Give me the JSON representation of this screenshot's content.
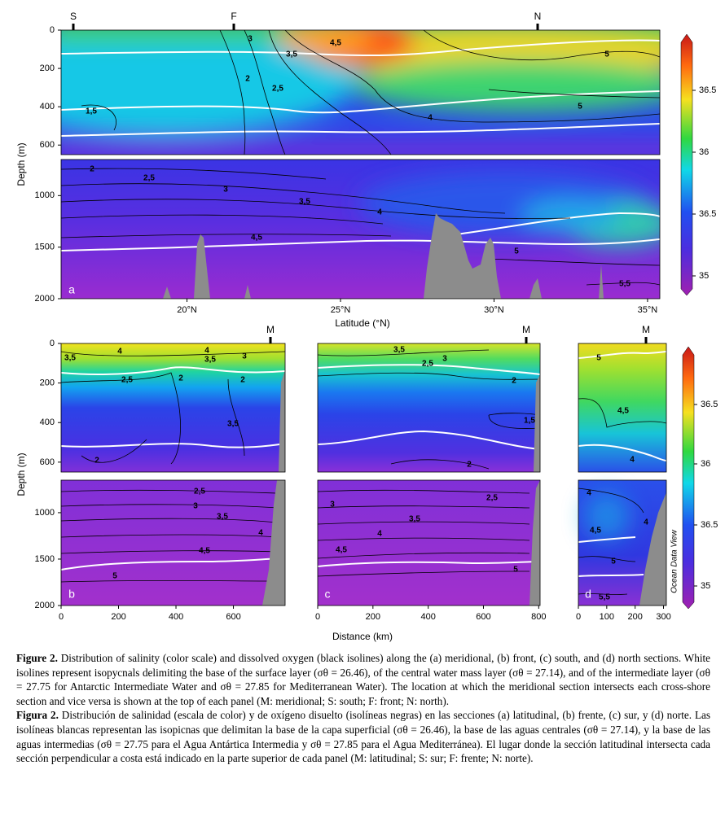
{
  "figure": {
    "panels": [
      {
        "letter": "a",
        "top_marks": [
          "S",
          "F",
          "N"
        ],
        "xlim": [
          15.9,
          35.4
        ],
        "xticks": [
          {
            "value": 20,
            "label": "20°N"
          },
          {
            "value": 25,
            "label": "25°N"
          },
          {
            "value": 30,
            "label": "30°N"
          },
          {
            "value": 35,
            "label": "35°N"
          }
        ],
        "xlabel": "Latitude (°N)",
        "ylabel": "Depth (m)",
        "ylim_upper": [
          0,
          650
        ],
        "yticks_upper": [
          0,
          200,
          400,
          600
        ],
        "ylim_lower": [
          650,
          2000
        ],
        "yticks_lower": [
          1000,
          1500,
          2000
        ],
        "contour_labels": [
          "3",
          "4,5",
          "3,5",
          "5",
          "2",
          "2,5",
          "1,5",
          "5",
          "4",
          "2",
          "2,5",
          "3",
          "3,5",
          "4",
          "4,5",
          "5",
          "5,5"
        ]
      },
      {
        "letter": "b",
        "top_marks": [
          "M"
        ],
        "xlim": [
          0,
          780
        ],
        "xticks": [
          0,
          200,
          400,
          600
        ],
        "ylabel": "Depth (m)",
        "ylim_upper": [
          0,
          650
        ],
        "yticks_upper": [
          0,
          200,
          400,
          600
        ],
        "ylim_lower": [
          650,
          2000
        ],
        "yticks_lower": [
          1000,
          1500,
          2000
        ],
        "contour_labels": [
          "4",
          "4",
          "3,5",
          "3,5",
          "3",
          "2,5",
          "2",
          "2",
          "3,5",
          "2",
          "2,5",
          "3",
          "3,5",
          "4",
          "4,5",
          "5"
        ]
      },
      {
        "letter": "c",
        "top_marks": [
          "M"
        ],
        "xlim": [
          0,
          805
        ],
        "xticks": [
          0,
          200,
          400,
          600,
          800
        ],
        "ylim_upper": [
          0,
          650
        ],
        "ylim_lower": [
          650,
          2000
        ],
        "contour_labels": [
          "3,5",
          "3",
          "2,5",
          "2",
          "1,5",
          "2",
          "2,5",
          "3",
          "3,5",
          "4",
          "4,5",
          "5"
        ]
      },
      {
        "letter": "d",
        "top_marks": [
          "M"
        ],
        "xlim": [
          0,
          310
        ],
        "xticks": [
          0,
          100,
          200,
          300
        ],
        "ylim_upper": [
          0,
          650
        ],
        "ylim_lower": [
          650,
          2000
        ],
        "contour_labels": [
          "5",
          "4,5",
          "4",
          "4",
          "4",
          "4,5",
          "5",
          "5,5"
        ]
      }
    ],
    "shared_xlabel": "Distance (km)",
    "colorbars": [
      {
        "tick_labels": [
          "36.5",
          "36",
          "36.5",
          "35"
        ]
      },
      {
        "tick_labels": [
          "36.5",
          "36",
          "36.5",
          "35"
        ]
      }
    ],
    "watermark": "Ocean Data View",
    "caption": [
      {
        "label": "Figure 2.",
        "text": " Distribution of salinity (color scale) and dissolved oxygen (black isolines) along the (a) meridional, (b) front, (c) south, and (d) north sections. White isolines represent isopycnals delimiting the base of the surface layer (σθ = 26.46), of the central water mass layer (σθ = 27.14), and of the intermediate layer (σθ = 27.75 for Antarctic Intermediate Water and σθ = 27.85 for Mediterranean Water). The location at which the meridional section intersects each cross-shore section and vice versa is shown at the top of each panel (M: meridional; S: south; F: front; N: north)."
      },
      {
        "label": "Figura 2.",
        "text": " Distribución de salinidad (escala de color) y de oxígeno disuelto (isolíneas negras) en las secciones (a) latitudinal, (b) frente, (c) sur, y (d) norte. Las isolíneas blancas representan las isopicnas que delimitan la base de la capa superficial (σθ = 26.46), la base de las aguas centrales (σθ = 27.14), y la base de las aguas intermedias (σθ = 27.75 para el Agua Antártica Intermedia y σθ = 27.85 para el Agua Mediterránea). El lugar donde la sección latitudinal intersecta cada sección perpendicular a costa está indicado en la parte superior de cada panel (M: latitudinal; S: sur; F: frente; N: norte)."
      }
    ]
  }
}
